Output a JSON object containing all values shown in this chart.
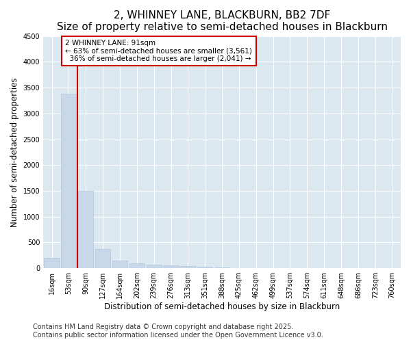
{
  "title": "2, WHINNEY LANE, BLACKBURN, BB2 7DF",
  "subtitle": "Size of property relative to semi-detached houses in Blackburn",
  "xlabel": "Distribution of semi-detached houses by size in Blackburn",
  "ylabel": "Number of semi-detached properties",
  "categories": [
    "16sqm",
    "53sqm",
    "90sqm",
    "127sqm",
    "164sqm",
    "202sqm",
    "239sqm",
    "276sqm",
    "313sqm",
    "351sqm",
    "388sqm",
    "425sqm",
    "462sqm",
    "499sqm",
    "537sqm",
    "574sqm",
    "611sqm",
    "648sqm",
    "686sqm",
    "723sqm",
    "760sqm"
  ],
  "values": [
    200,
    3380,
    1500,
    380,
    155,
    90,
    65,
    50,
    40,
    30,
    20,
    5,
    5,
    3,
    2,
    1,
    1,
    1,
    0,
    0,
    0
  ],
  "bar_color": "#c8d8ea",
  "bar_edge_color": "#b0c8de",
  "property_label": "2 WHINNEY LANE: 91sqm",
  "pct_smaller": 63,
  "pct_smaller_count": 3561,
  "pct_larger": 36,
  "pct_larger_count": 2041,
  "vline_color": "#cc0000",
  "annotation_box_color": "#cc0000",
  "vline_x": 1.5,
  "ylim": [
    0,
    4500
  ],
  "yticks": [
    0,
    500,
    1000,
    1500,
    2000,
    2500,
    3000,
    3500,
    4000,
    4500
  ],
  "footer_line1": "Contains HM Land Registry data © Crown copyright and database right 2025.",
  "footer_line2": "Contains public sector information licensed under the Open Government Licence v3.0.",
  "fig_bg_color": "#ffffff",
  "plot_bg_color": "#dce8f0",
  "grid_color": "#ffffff",
  "title_fontsize": 11,
  "subtitle_fontsize": 9,
  "tick_fontsize": 7,
  "label_fontsize": 8.5,
  "annot_fontsize": 7.5,
  "footer_fontsize": 7
}
